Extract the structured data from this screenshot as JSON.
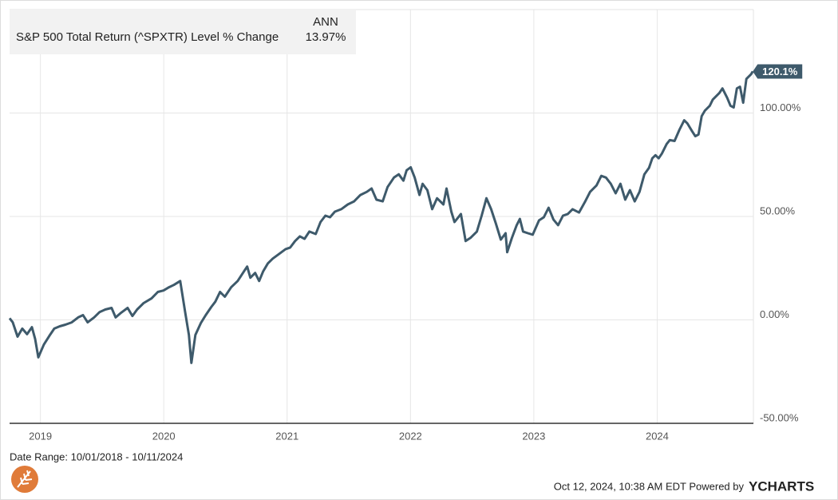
{
  "chart_data": {
    "type": "line",
    "legend_header": "ANN",
    "series_title": "S&P 500 Total Return (^SPXTR) Level % Change",
    "annualized": "13.97%",
    "date_range": "Date Range: 10/01/2018 - 10/11/2024",
    "footer": "Oct 12, 2024, 10:38 AM EDT Powered by",
    "brand": "YCHARTS",
    "xlim": [
      2018.75,
      2024.78
    ],
    "xticks": [
      2019,
      2020,
      2021,
      2022,
      2023,
      2024
    ],
    "ylim": [
      -50,
      150
    ],
    "yticks": [
      {
        "value": -50,
        "label": "-50.00%"
      },
      {
        "value": 0,
        "label": "0.00%"
      },
      {
        "value": 50,
        "label": "50.00%"
      },
      {
        "value": 100,
        "label": "100.00%"
      }
    ],
    "grid": true,
    "x": [
      2018.75,
      2018.776,
      2018.815,
      2018.853,
      2018.892,
      2018.931,
      2018.957,
      2018.983,
      2019.028,
      2019.073,
      2019.112,
      2019.157,
      2019.202,
      2019.254,
      2019.306,
      2019.345,
      2019.383,
      2019.435,
      2019.48,
      2019.526,
      2019.577,
      2019.61,
      2019.655,
      2019.707,
      2019.746,
      2019.784,
      2019.836,
      2019.901,
      2019.952,
      2019.998,
      2020.043,
      2020.082,
      2020.133,
      2020.172,
      2020.204,
      2020.224,
      2020.256,
      2020.301,
      2020.34,
      2020.385,
      2020.418,
      2020.456,
      2020.495,
      2020.547,
      2020.599,
      2020.651,
      2020.676,
      2020.702,
      2020.741,
      2020.773,
      2020.806,
      2020.844,
      2020.883,
      2020.935,
      2020.987,
      2021.025,
      2021.064,
      2021.103,
      2021.141,
      2021.18,
      2021.232,
      2021.271,
      2021.31,
      2021.348,
      2021.387,
      2021.439,
      2021.491,
      2021.543,
      2021.594,
      2021.646,
      2021.685,
      2021.724,
      2021.775,
      2021.814,
      2021.866,
      2021.905,
      2021.943,
      2021.969,
      2022.002,
      2022.034,
      2022.073,
      2022.098,
      2022.137,
      2022.176,
      2022.215,
      2022.267,
      2022.292,
      2022.331,
      2022.357,
      2022.409,
      2022.447,
      2022.486,
      2022.538,
      2022.577,
      2022.616,
      2022.654,
      2022.693,
      2022.732,
      2022.771,
      2022.784,
      2022.822,
      2022.861,
      2022.887,
      2022.913,
      2022.952,
      2022.991,
      2023.042,
      2023.081,
      2023.12,
      2023.159,
      2023.197,
      2023.236,
      2023.275,
      2023.314,
      2023.366,
      2023.417,
      2023.456,
      2023.508,
      2023.547,
      2023.585,
      2023.624,
      2023.663,
      2023.702,
      2023.741,
      2023.779,
      2023.818,
      2023.857,
      2023.896,
      2023.934,
      2023.96,
      2023.986,
      2024.012,
      2024.038,
      2024.077,
      2024.102,
      2024.141,
      2024.18,
      2024.219,
      2024.244,
      2024.283,
      2024.309,
      2024.335,
      2024.361,
      2024.387,
      2024.426,
      2024.451,
      2024.503,
      2024.529,
      2024.568,
      2024.594,
      2024.62,
      2024.646,
      2024.671,
      2024.697,
      2024.723,
      2024.762,
      2024.775
    ],
    "series": [
      {
        "name": "S&P 500 Total Return (^SPXTR) Level % Change",
        "color": "#3e5a6b",
        "end_label": "120.1%",
        "values": [
          0.8,
          -1.2,
          -8.1,
          -4.2,
          -6.9,
          -3.5,
          -9.2,
          -18.1,
          -11.9,
          -7.7,
          -4.2,
          -3.1,
          -2.3,
          -1.2,
          1.2,
          2.3,
          -1.2,
          1.2,
          3.8,
          5.0,
          5.8,
          1.2,
          3.5,
          5.8,
          1.9,
          5.0,
          8.1,
          10.4,
          13.5,
          14.2,
          15.8,
          16.9,
          18.8,
          4.2,
          -7.3,
          -20.8,
          -7.3,
          -1.5,
          2.3,
          6.2,
          8.8,
          13.5,
          11.2,
          15.8,
          18.8,
          23.5,
          25.8,
          20.4,
          22.7,
          18.8,
          23.5,
          27.3,
          29.6,
          31.9,
          34.2,
          35.0,
          38.1,
          40.4,
          39.2,
          42.7,
          41.5,
          47.3,
          50.4,
          49.6,
          52.3,
          53.5,
          55.8,
          57.3,
          60.4,
          61.9,
          63.5,
          58.1,
          57.3,
          64.2,
          68.8,
          70.4,
          67.3,
          72.3,
          73.8,
          68.8,
          60.4,
          65.8,
          62.7,
          53.5,
          58.8,
          55.8,
          63.5,
          52.3,
          47.3,
          51.2,
          38.1,
          39.6,
          42.7,
          50.4,
          58.8,
          53.5,
          46.5,
          38.8,
          41.9,
          32.7,
          39.6,
          45.8,
          48.8,
          42.7,
          41.9,
          41.2,
          48.1,
          49.6,
          54.2,
          48.5,
          45.8,
          50.4,
          51.2,
          53.5,
          51.9,
          57.3,
          61.9,
          65.0,
          69.6,
          68.8,
          65.8,
          61.2,
          65.8,
          58.1,
          62.7,
          57.3,
          61.9,
          70.4,
          73.5,
          78.1,
          79.6,
          78.1,
          80.4,
          85.0,
          86.9,
          86.5,
          91.9,
          96.5,
          95.0,
          91.2,
          88.8,
          89.6,
          98.5,
          101.2,
          103.5,
          106.5,
          109.6,
          111.9,
          107.3,
          103.5,
          102.7,
          111.9,
          112.7,
          105.0,
          116.5,
          118.8,
          120.1
        ]
      }
    ]
  }
}
